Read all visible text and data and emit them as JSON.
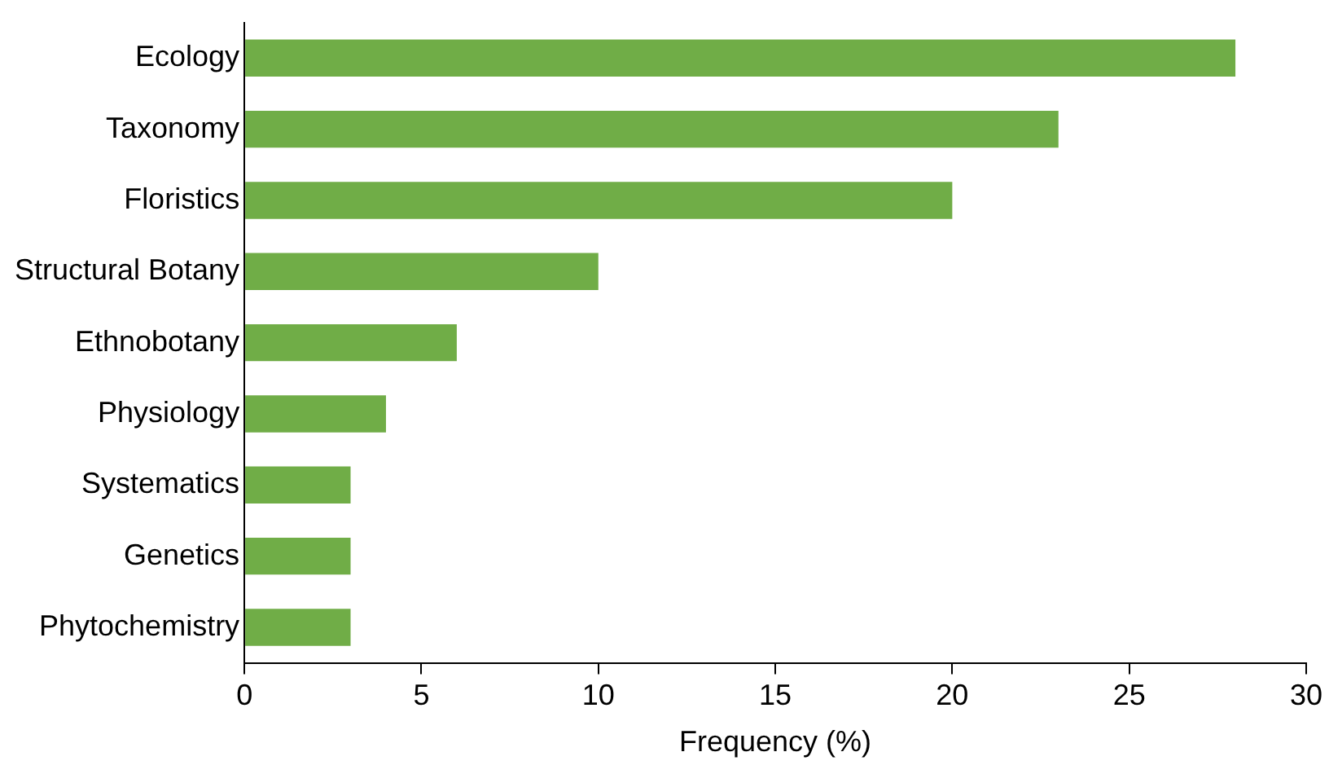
{
  "chart_data": {
    "type": "bar",
    "orientation": "horizontal",
    "xlabel": "Frequency (%)",
    "categories": [
      "Ecology",
      "Taxonomy",
      "Floristics",
      "Structural Botany",
      "Ethnobotany",
      "Physiology",
      "Systematics",
      "Genetics",
      "Phytochemistry"
    ],
    "values": [
      28,
      23,
      20,
      10,
      6,
      4,
      3,
      3,
      3
    ],
    "color": "#70ad47",
    "xlim": [
      0,
      30
    ],
    "xticks": [
      0,
      5,
      10,
      15,
      20,
      25,
      30
    ],
    "grid": false,
    "legend": false
  }
}
